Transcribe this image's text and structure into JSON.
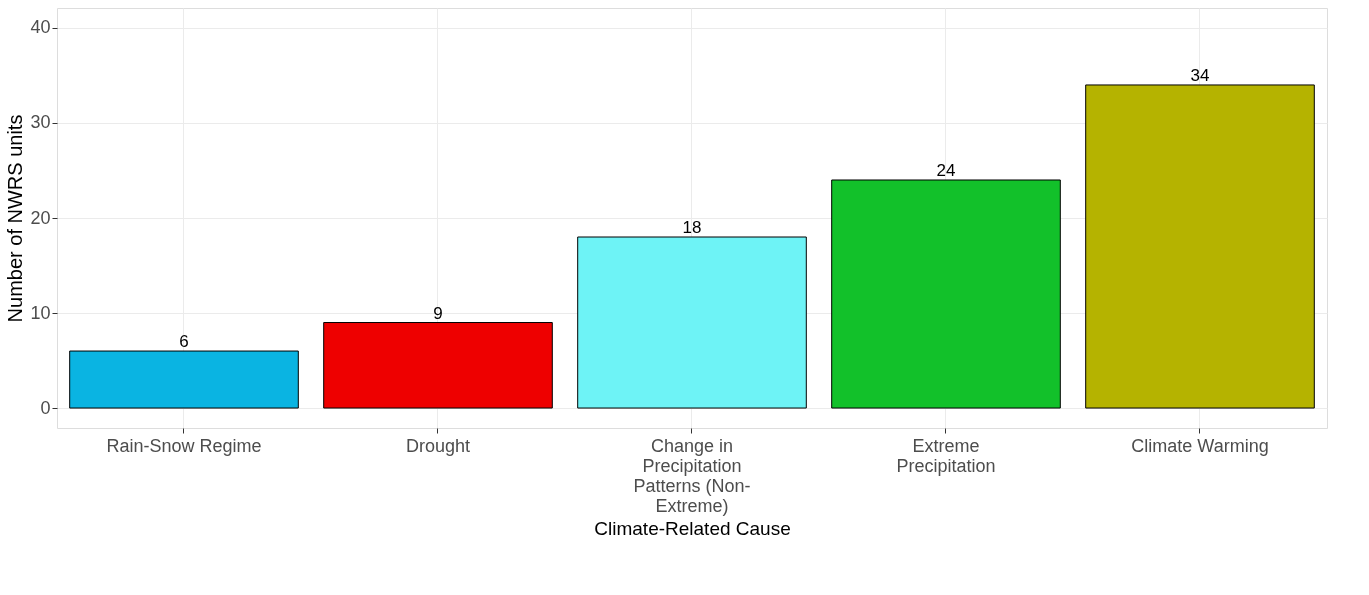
{
  "chart_data": {
    "type": "bar",
    "xlabel": "Climate-Related Cause",
    "ylabel": "Number of NWRS units",
    "categories": [
      "Rain-Snow Regime",
      "Drought",
      "Change in Precipitation Patterns (Non-Extreme)",
      "Extreme Precipitation",
      "Climate Warming"
    ],
    "values": [
      6,
      9,
      18,
      24,
      34
    ],
    "colors": [
      "#0ab4e2",
      "#ee0000",
      "#6ef3f6",
      "#12c12a",
      "#b5b300"
    ],
    "ylim": [
      -2.1,
      42.1
    ],
    "yticks": [
      0,
      10,
      20,
      30,
      40
    ],
    "grid": true,
    "data_labels": true
  }
}
